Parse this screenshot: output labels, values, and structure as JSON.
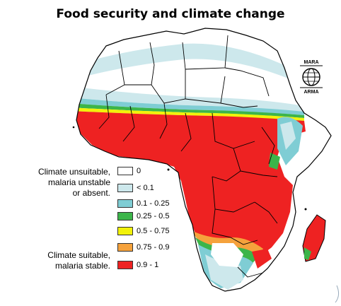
{
  "title": "Food security and climate change",
  "logo": {
    "top_text": "MARA",
    "bottom_text": "ARMA"
  },
  "legend": {
    "desc_unsuitable": [
      "Climate unsuitable,",
      "malaria unstable",
      "or absent."
    ],
    "desc_suitable": [
      "Climate suitable,",
      "malaria stable."
    ],
    "classes": [
      {
        "label": "0",
        "color": "#ffffff"
      },
      {
        "label": "< 0.1",
        "color": "#cde8ec"
      },
      {
        "label": "0.1 - 0.25",
        "color": "#7fcdd4"
      },
      {
        "label": "0.25 - 0.5",
        "color": "#3cb54a"
      },
      {
        "label": "0.5 - 0.75",
        "color": "#f2f20a"
      },
      {
        "label": "0.75 - 0.9",
        "color": "#f5a23c"
      },
      {
        "label": "0.9 - 1",
        "color": "#ee2222"
      }
    ]
  },
  "colors": {
    "border": "#000000",
    "outline": "#555555"
  }
}
